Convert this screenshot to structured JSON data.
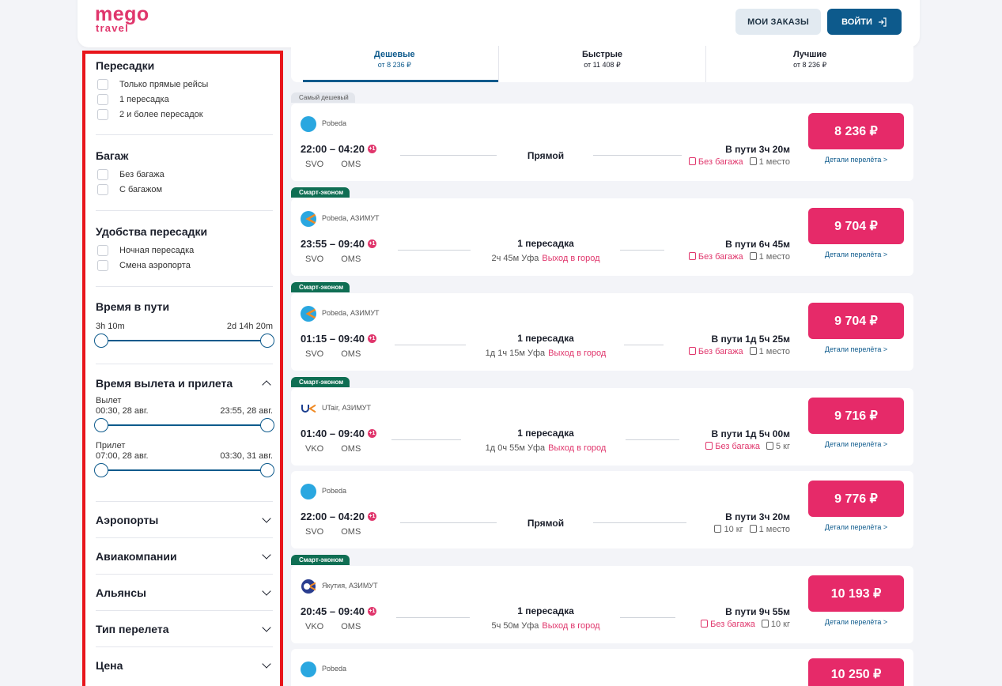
{
  "header": {
    "logo_line1": "mego",
    "logo_line2": "travel",
    "orders_label": "МОИ ЗАКАЗЫ",
    "login_label": "ВОЙТИ"
  },
  "filters": {
    "transfers": {
      "title": "Пересадки",
      "options": [
        "Только прямые рейсы",
        "1 пересадка",
        "2 и более пересадок"
      ]
    },
    "baggage": {
      "title": "Багаж",
      "options": [
        "Без багажа",
        "С багажом"
      ]
    },
    "comfort": {
      "title": "Удобства пересадки",
      "options": [
        "Ночная пересадка",
        "Смена аэропорта"
      ]
    },
    "travel_time": {
      "title": "Время в пути",
      "min": "3h 10m",
      "max": "2d 14h 20m"
    },
    "dep_arr": {
      "title": "Время вылета и прилета",
      "dep_label": "Вылет",
      "dep_min": "00:30, 28 авг.",
      "dep_max": "23:55, 28 авг.",
      "arr_label": "Прилет",
      "arr_min": "07:00, 28 авг.",
      "arr_max": "03:30, 31 авг."
    },
    "collapsed": [
      "Аэропорты",
      "Авиакомпании",
      "Альянсы",
      "Тип перелета",
      "Цена"
    ]
  },
  "tabs": [
    {
      "label": "Дешевые",
      "sub": "от 8 236 ₽"
    },
    {
      "label": "Быстрые",
      "sub": "от 11 408 ₽"
    },
    {
      "label": "Лучшие",
      "sub": "от 8 236 ₽"
    }
  ],
  "badges": {
    "cheapest": "Самый дешевый",
    "smart": "Смарт-эконом"
  },
  "details_label": "Детали перелёта >",
  "flights": [
    {
      "airline": "Pobeda",
      "time": "22:00 – 04:20",
      "from": "SVO",
      "to": "OMS",
      "stops": "Прямой",
      "stop_detail": "",
      "stop_city": "",
      "duration": "В пути 3ч 20м",
      "baggage": "Без багажа",
      "hand": "1 место",
      "price": "8 236 ₽"
    },
    {
      "airline": "Pobeda, АЗИМУТ",
      "time": "23:55 – 09:40",
      "from": "SVO",
      "to": "OMS",
      "stops": "1 пересадка",
      "stop_detail": "2ч 45м Уфа",
      "stop_city": "Выход в город",
      "duration": "В пути 6ч 45м",
      "baggage": "Без багажа",
      "hand": "1 место",
      "price": "9 704 ₽"
    },
    {
      "airline": "Pobeda, АЗИМУТ",
      "time": "01:15 – 09:40",
      "from": "SVO",
      "to": "OMS",
      "stops": "1 пересадка",
      "stop_detail": "1д 1ч 15м Уфа",
      "stop_city": "Выход в город",
      "duration": "В пути 1д 5ч 25м",
      "baggage": "Без багажа",
      "hand": "1 место",
      "price": "9 704 ₽"
    },
    {
      "airline": "UTair, АЗИМУТ",
      "time": "01:40 – 09:40",
      "from": "VKO",
      "to": "OMS",
      "stops": "1 пересадка",
      "stop_detail": "1д 0ч 55м Уфа",
      "stop_city": "Выход в город",
      "duration": "В пути 1д 5ч 00м",
      "baggage": "Без багажа",
      "hand": "5 кг",
      "price": "9 716 ₽"
    },
    {
      "airline": "Pobeda",
      "time": "22:00 – 04:20",
      "from": "SVO",
      "to": "OMS",
      "stops": "Прямой",
      "stop_detail": "",
      "stop_city": "",
      "duration": "В пути 3ч 20м",
      "baggage": "10 кг",
      "hand": "1 место",
      "price": "9 776 ₽"
    },
    {
      "airline": "Якутия, АЗИМУТ",
      "time": "20:45 – 09:40",
      "from": "VKO",
      "to": "OMS",
      "stops": "1 пересадка",
      "stop_detail": "5ч 50м Уфа",
      "stop_city": "Выход в город",
      "duration": "В пути 9ч 55м",
      "baggage": "Без багажа",
      "hand": "10 кг",
      "price": "10 193 ₽"
    },
    {
      "airline": "Pobeda",
      "price": "10 250 ₽"
    }
  ]
}
